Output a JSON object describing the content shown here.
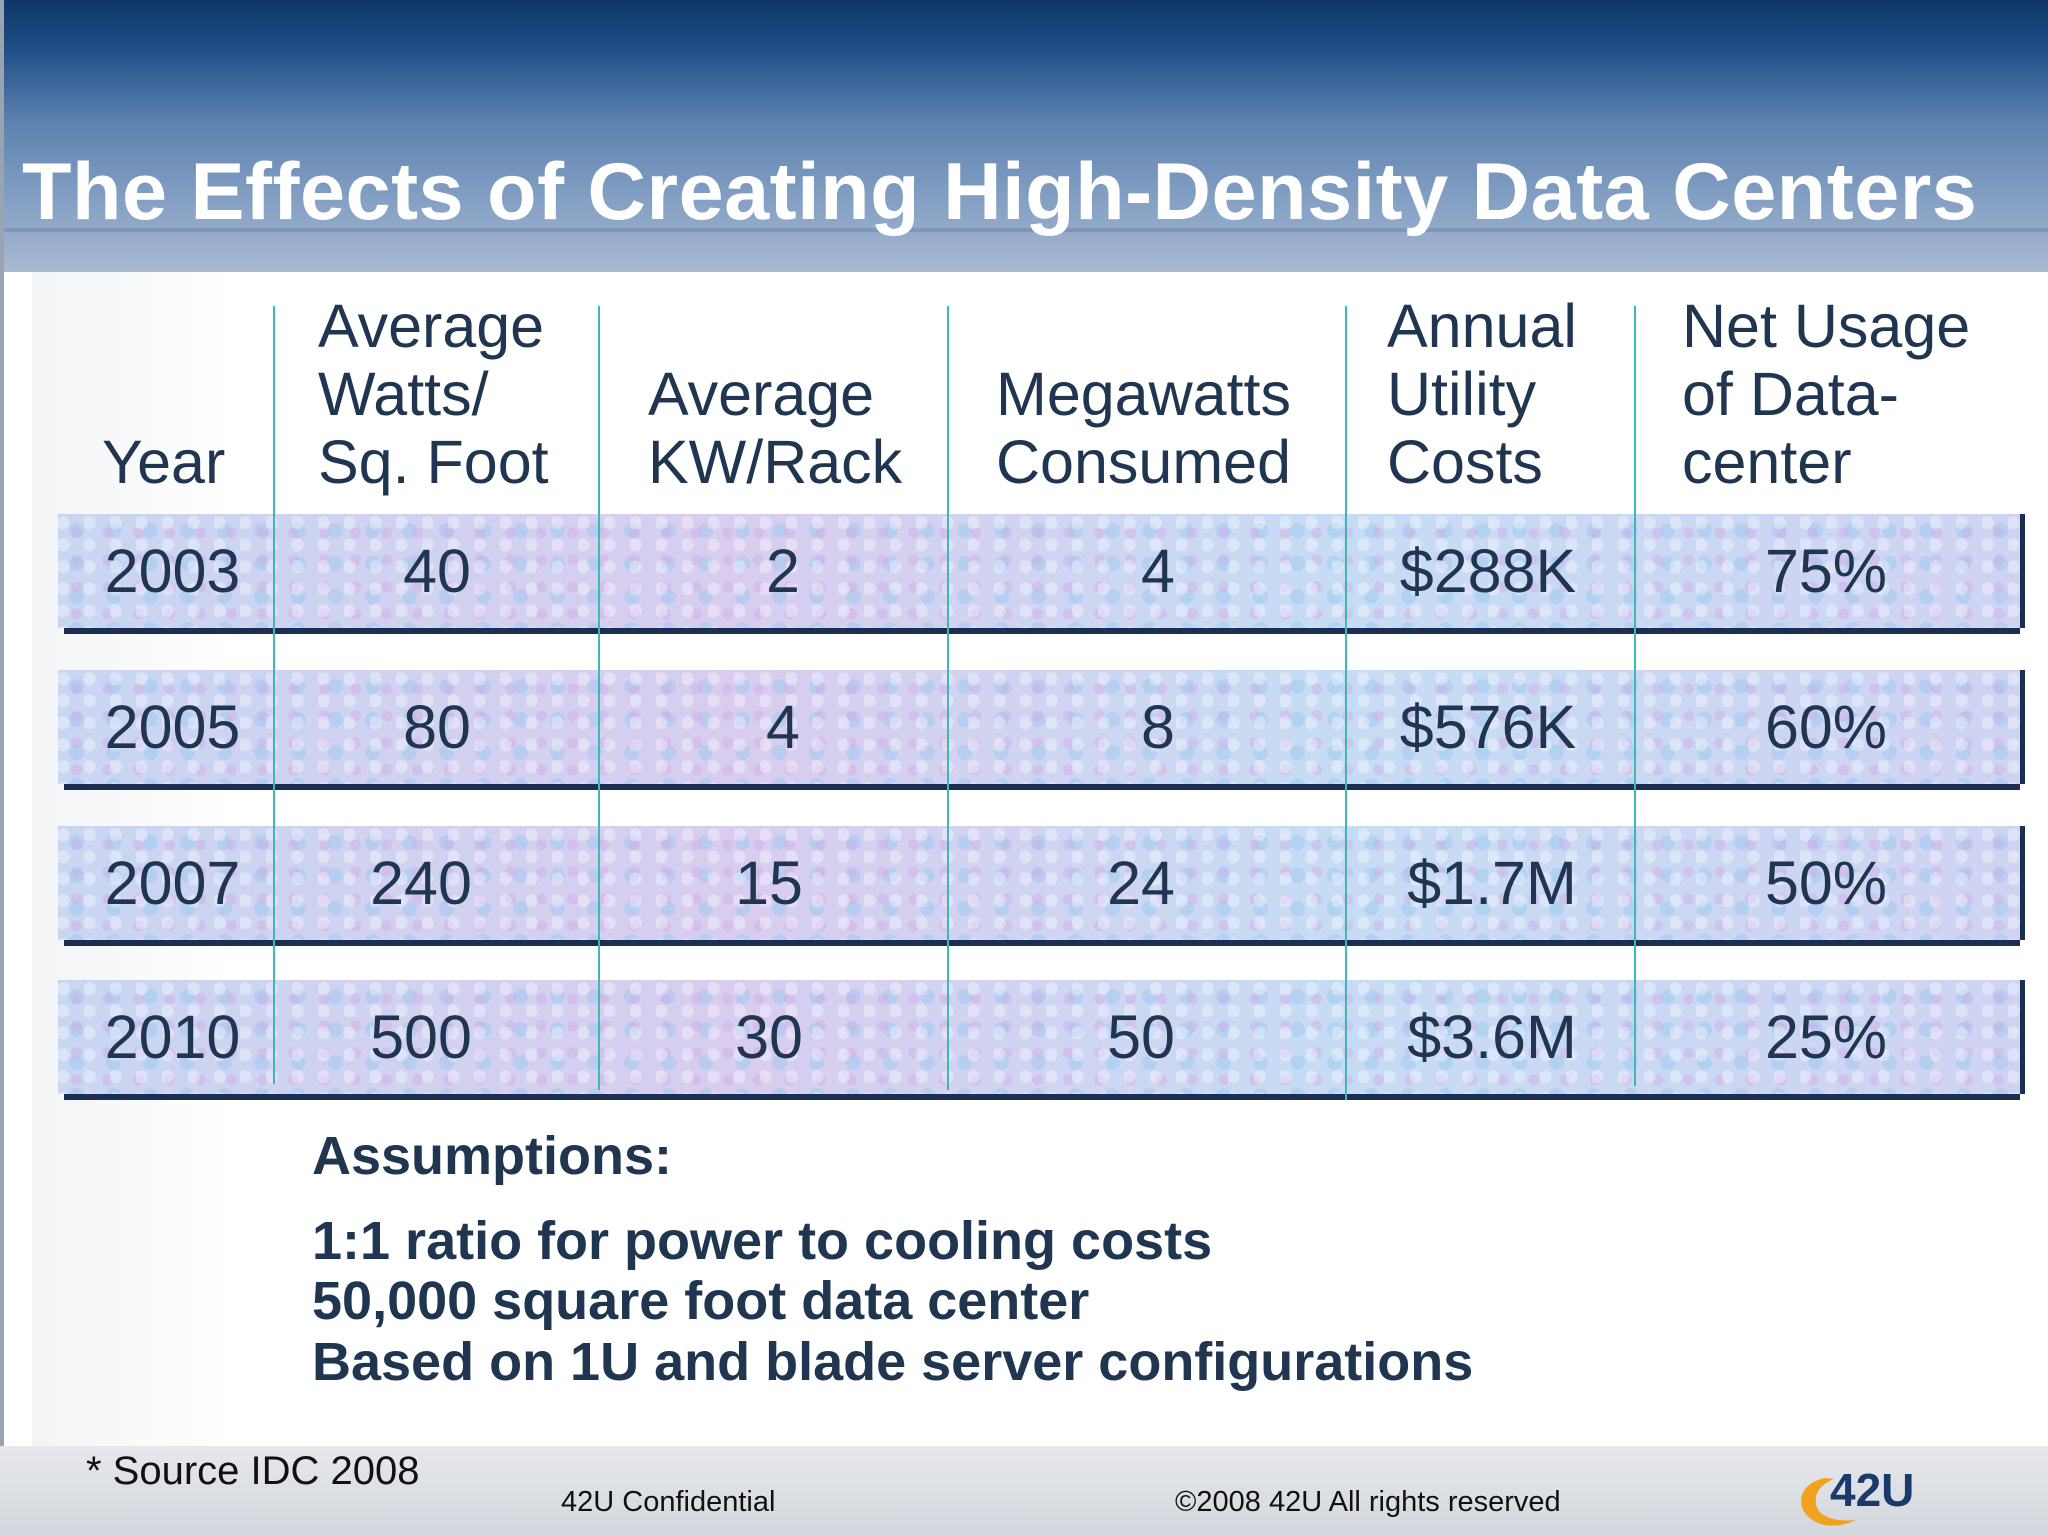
{
  "slide": {
    "title": "The Effects of Creating High-Density Data Centers"
  },
  "table": {
    "headers": [
      "Year",
      "Average\nWatts/\nSq. Foot",
      "Average\nKW/Rack",
      "Megawatts\nConsumed",
      "Annual\nUtility\nCosts",
      "Net Usage\nof Data-\ncenter"
    ],
    "rows": [
      [
        "2003",
        "40",
        "2",
        "4",
        "$288K",
        "75%"
      ],
      [
        "2005",
        "80",
        "4",
        "8",
        "$576K",
        "60%"
      ],
      [
        "2007",
        "240",
        "15",
        "24",
        "$1.7M",
        "50%"
      ],
      [
        "2010",
        "500",
        "30",
        "50",
        "$3.6M",
        "25%"
      ]
    ]
  },
  "assumptions": {
    "title": "Assumptions:",
    "items": [
      "1:1 ratio for power to cooling costs",
      "50,000 square foot data center",
      "Based on 1U and blade server configurations"
    ]
  },
  "footer": {
    "source": "* Source IDC 2008",
    "confidential": "42U Confidential",
    "copyright": "©2008 42U All rights reserved",
    "logo_text": "42U"
  },
  "colors": {
    "header_dark": "#0d3666",
    "text_navy": "#1f3550",
    "divider_teal": "#3fb7b4",
    "logo_orange": "#f0a21e"
  }
}
